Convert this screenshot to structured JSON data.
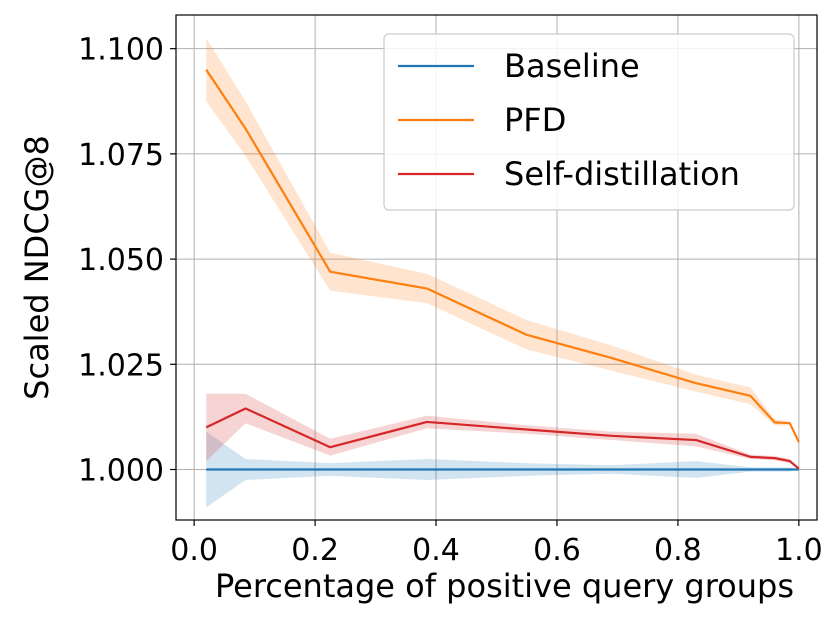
{
  "chart_data": {
    "type": "line",
    "title": "",
    "xlabel": "Percentage of positive query groups",
    "ylabel": "Scaled NDCG@8",
    "xlim": [
      -0.03,
      1.03
    ],
    "ylim": [
      0.988,
      1.108
    ],
    "xticks": [
      0.0,
      0.2,
      0.4,
      0.6,
      0.8,
      1.0
    ],
    "xtick_labels": [
      "0.0",
      "0.2",
      "0.4",
      "0.6",
      "0.8",
      "1.0"
    ],
    "yticks": [
      1.0,
      1.025,
      1.05,
      1.075,
      1.1
    ],
    "ytick_labels": [
      "1.000",
      "1.025",
      "1.050",
      "1.075",
      "1.100"
    ],
    "grid": true,
    "legend_position": "top-right",
    "series": [
      {
        "name": "Baseline",
        "color": "#1f77b4",
        "x": [
          0.02,
          0.085,
          0.225,
          0.385,
          0.55,
          0.69,
          0.83,
          0.92,
          0.96,
          0.985,
          1.0
        ],
        "y": [
          1.0,
          1.0,
          1.0,
          1.0,
          1.0,
          1.0,
          1.0,
          1.0,
          1.0,
          1.0,
          1.0
        ],
        "lower": [
          0.991,
          0.9975,
          0.9985,
          0.9975,
          0.9985,
          0.999,
          0.998,
          0.9995,
          0.9995,
          0.9995,
          1.0
        ],
        "upper": [
          1.009,
          1.0025,
          1.0015,
          1.0025,
          1.0015,
          1.001,
          1.002,
          1.0005,
          1.0005,
          1.0005,
          1.0
        ]
      },
      {
        "name": "PFD",
        "color": "#ff7f0e",
        "x": [
          0.02,
          0.085,
          0.225,
          0.385,
          0.55,
          0.69,
          0.83,
          0.92,
          0.96,
          0.985,
          1.0
        ],
        "y": [
          1.095,
          1.081,
          1.047,
          1.043,
          1.032,
          1.0265,
          1.0205,
          1.0175,
          1.0112,
          1.011,
          1.0065
        ],
        "lower": [
          1.0875,
          1.0745,
          1.0425,
          1.0395,
          1.0285,
          1.0235,
          1.0185,
          1.0155,
          1.0105,
          1.0105,
          1.0062
        ],
        "upper": [
          1.1025,
          1.0875,
          1.0515,
          1.0465,
          1.0355,
          1.0295,
          1.0225,
          1.0195,
          1.0119,
          1.0115,
          1.0068
        ]
      },
      {
        "name": "Self-distillation",
        "color": "#d62728",
        "x": [
          0.02,
          0.085,
          0.225,
          0.385,
          0.55,
          0.69,
          0.83,
          0.92,
          0.96,
          0.985,
          1.0
        ],
        "y": [
          1.01,
          1.0145,
          1.0053,
          1.0113,
          1.0095,
          1.008,
          1.007,
          1.003,
          1.0027,
          1.002,
          1.0002
        ],
        "lower": [
          1.002,
          1.011,
          1.0033,
          1.0098,
          1.0085,
          1.007,
          1.0055,
          1.0025,
          1.0022,
          1.0015,
          1.0
        ],
        "upper": [
          1.018,
          1.018,
          1.0073,
          1.0128,
          1.0105,
          1.009,
          1.0085,
          1.0035,
          1.0032,
          1.0025,
          1.0004
        ]
      }
    ]
  }
}
